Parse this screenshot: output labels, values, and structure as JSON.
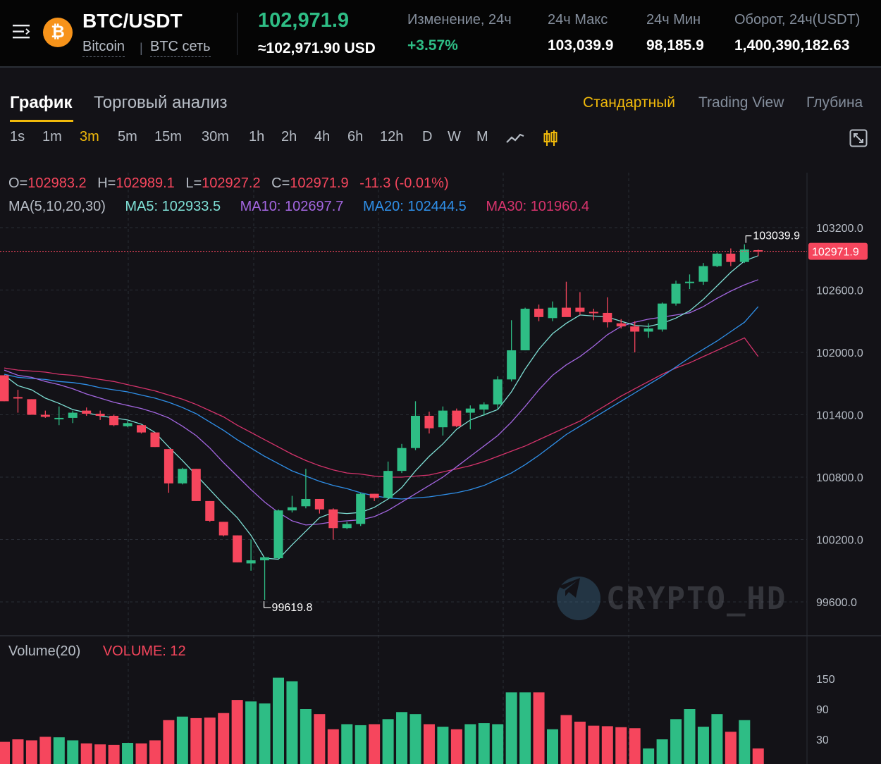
{
  "header": {
    "menu_icon": "menu-icon",
    "coin_icon": "bitcoin-icon",
    "coin_symbol": "₿",
    "pair": "BTC/USDT",
    "coin_name": "Bitcoin",
    "network": "BTC сеть",
    "separator": "|",
    "last_price": "102,971.9",
    "usd_price": "≈102,971.90 USD",
    "stats": [
      {
        "label": "Изменение, 24ч",
        "value": "+3.57%"
      },
      {
        "label": "24ч Макс",
        "value": "103,039.9"
      },
      {
        "label": "24ч Мин",
        "value": "98,185.9"
      },
      {
        "label": "Оборот, 24ч(USDT)",
        "value": "1,400,390,182.63"
      }
    ]
  },
  "tabs": {
    "chart": "График",
    "analysis": "Торговый анализ"
  },
  "views": {
    "standard": "Стандартный",
    "tradingview": "Trading View",
    "depth": "Глубина"
  },
  "intervals": [
    "1s",
    "1m",
    "3m",
    "5m",
    "15m",
    "30m",
    "1h",
    "2h",
    "4h",
    "6h",
    "12h",
    "D",
    "W",
    "M"
  ],
  "active_interval": "3m",
  "toolbar_icons": [
    "line-chart-icon",
    "candlestick-icon",
    "fullscreen-icon"
  ],
  "ohlc": {
    "o_label": "O=",
    "o": "102983.2",
    "h_label": "H=",
    "h": "102989.1",
    "l_label": "L=",
    "l": "102927.2",
    "c_label": "C=",
    "c": "102971.9",
    "change": "-11.3 (-0.01%)"
  },
  "ma_legend": {
    "label": "MA(5,10,20,30)",
    "ma5": "MA5: 102933.5",
    "ma10": "MA10: 102697.7",
    "ma20": "MA20: 102444.5",
    "ma30": "MA30: 101960.4"
  },
  "volume_legend": {
    "label": "Volume(20)",
    "value": "VOLUME: 12"
  },
  "watermark": "CRYPTO_HD",
  "colors": {
    "up": "#2ebd85",
    "down": "#f6465d",
    "accent": "#f0b90b",
    "ma5": "#7fe0d6",
    "ma10": "#a366e0",
    "ma20": "#2f8fe8",
    "ma30": "#d6336c"
  },
  "chart_data": {
    "type": "candlestick",
    "y_range": [
      99300,
      103500
    ],
    "y_ticks": [
      "103200.0",
      "102600.0",
      "102000.0",
      "101400.0",
      "100800.0",
      "100200.0",
      "99600.0"
    ],
    "current_price_label": "102971.9",
    "max_label": "103039.9",
    "min_label": "99619.8",
    "candles": [
      {
        "o": 101780,
        "h": 101780,
        "l": 101530,
        "c": 101530
      },
      {
        "o": 101570,
        "h": 101640,
        "l": 101420,
        "c": 101560
      },
      {
        "o": 101550,
        "h": 101550,
        "l": 101400,
        "c": 101400
      },
      {
        "o": 101400,
        "h": 101440,
        "l": 101370,
        "c": 101380
      },
      {
        "o": 101370,
        "h": 101480,
        "l": 101300,
        "c": 101370
      },
      {
        "o": 101370,
        "h": 101440,
        "l": 101320,
        "c": 101420
      },
      {
        "o": 101440,
        "h": 101470,
        "l": 101390,
        "c": 101410
      },
      {
        "o": 101410,
        "h": 101440,
        "l": 101350,
        "c": 101390
      },
      {
        "o": 101390,
        "h": 101400,
        "l": 101290,
        "c": 101300
      },
      {
        "o": 101290,
        "h": 101340,
        "l": 101280,
        "c": 101320
      },
      {
        "o": 101300,
        "h": 101300,
        "l": 101220,
        "c": 101230
      },
      {
        "o": 101230,
        "h": 101230,
        "l": 101090,
        "c": 101090
      },
      {
        "o": 101070,
        "h": 101070,
        "l": 100650,
        "c": 100740
      },
      {
        "o": 100740,
        "h": 100890,
        "l": 100730,
        "c": 100880
      },
      {
        "o": 100880,
        "h": 100880,
        "l": 100570,
        "c": 100570
      },
      {
        "o": 100570,
        "h": 100570,
        "l": 100370,
        "c": 100380
      },
      {
        "o": 100370,
        "h": 100370,
        "l": 100230,
        "c": 100240
      },
      {
        "o": 100240,
        "h": 100240,
        "l": 99980,
        "c": 99980
      },
      {
        "o": 99970,
        "h": 100200,
        "l": 99900,
        "c": 100000
      },
      {
        "o": 100000,
        "h": 100010,
        "l": 99620,
        "c": 100030
      },
      {
        "o": 100020,
        "h": 100490,
        "l": 100010,
        "c": 100480
      },
      {
        "o": 100480,
        "h": 100620,
        "l": 100460,
        "c": 100510
      },
      {
        "o": 100520,
        "h": 100880,
        "l": 100500,
        "c": 100590
      },
      {
        "o": 100590,
        "h": 100590,
        "l": 100450,
        "c": 100490
      },
      {
        "o": 100490,
        "h": 100500,
        "l": 100200,
        "c": 100310
      },
      {
        "o": 100310,
        "h": 100370,
        "l": 100300,
        "c": 100350
      },
      {
        "o": 100350,
        "h": 100650,
        "l": 100330,
        "c": 100640
      },
      {
        "o": 100640,
        "h": 100640,
        "l": 100570,
        "c": 100600
      },
      {
        "o": 100600,
        "h": 100950,
        "l": 100590,
        "c": 100860
      },
      {
        "o": 100860,
        "h": 101120,
        "l": 100840,
        "c": 101080
      },
      {
        "o": 101080,
        "h": 101530,
        "l": 101060,
        "c": 101390
      },
      {
        "o": 101390,
        "h": 101430,
        "l": 101220,
        "c": 101270
      },
      {
        "o": 101280,
        "h": 101480,
        "l": 101200,
        "c": 101440
      },
      {
        "o": 101440,
        "h": 101460,
        "l": 101280,
        "c": 101290
      },
      {
        "o": 101420,
        "h": 101490,
        "l": 101260,
        "c": 101460
      },
      {
        "o": 101450,
        "h": 101520,
        "l": 101390,
        "c": 101500
      },
      {
        "o": 101500,
        "h": 101770,
        "l": 101450,
        "c": 101740
      },
      {
        "o": 101740,
        "h": 102310,
        "l": 101720,
        "c": 102020
      },
      {
        "o": 102020,
        "h": 102430,
        "l": 102020,
        "c": 102420
      },
      {
        "o": 102420,
        "h": 102460,
        "l": 102300,
        "c": 102340
      },
      {
        "o": 102330,
        "h": 102490,
        "l": 102300,
        "c": 102430
      },
      {
        "o": 102430,
        "h": 102680,
        "l": 102360,
        "c": 102340
      },
      {
        "o": 102430,
        "h": 102580,
        "l": 102360,
        "c": 102390
      },
      {
        "o": 102390,
        "h": 102420,
        "l": 102310,
        "c": 102380
      },
      {
        "o": 102380,
        "h": 102530,
        "l": 102240,
        "c": 102290
      },
      {
        "o": 102280,
        "h": 102320,
        "l": 102230,
        "c": 102250
      },
      {
        "o": 102250,
        "h": 102300,
        "l": 102000,
        "c": 102200
      },
      {
        "o": 102200,
        "h": 102280,
        "l": 102140,
        "c": 102230
      },
      {
        "o": 102220,
        "h": 102480,
        "l": 102200,
        "c": 102470
      },
      {
        "o": 102470,
        "h": 102690,
        "l": 102450,
        "c": 102660
      },
      {
        "o": 102670,
        "h": 102750,
        "l": 102610,
        "c": 102680
      },
      {
        "o": 102680,
        "h": 102860,
        "l": 102650,
        "c": 102830
      },
      {
        "o": 102830,
        "h": 102960,
        "l": 102820,
        "c": 102950
      },
      {
        "o": 102950,
        "h": 103000,
        "l": 102830,
        "c": 102870
      },
      {
        "o": 102870,
        "h": 103040,
        "l": 102860,
        "c": 102990
      },
      {
        "o": 102983,
        "h": 102989,
        "l": 102927,
        "c": 102972
      }
    ],
    "ma5": [
      101780,
      101680,
      101640,
      101560,
      101510,
      101450,
      101420,
      101390,
      101370,
      101350,
      101310,
      101230,
      101090,
      100960,
      100820,
      100680,
      100540,
      100410,
      100240,
      100020,
      100010,
      100150,
      100280,
      100410,
      100460,
      100450,
      100460,
      100510,
      100590,
      100700,
      100860,
      101000,
      101120,
      101260,
      101350,
      101400,
      101450,
      101620,
      101840,
      102030,
      102180,
      102280,
      102360,
      102350,
      102340,
      102300,
      102260,
      102250,
      102280,
      102330,
      102400,
      102510,
      102640,
      102770,
      102880,
      102930
    ],
    "ma10": [
      101830,
      101780,
      101760,
      101720,
      101690,
      101650,
      101600,
      101560,
      101520,
      101490,
      101460,
      101420,
      101370,
      101290,
      101200,
      101080,
      100940,
      100810,
      100680,
      100560,
      100460,
      100380,
      100340,
      100350,
      100370,
      100380,
      100390,
      100420,
      100480,
      100560,
      100640,
      100720,
      100800,
      100900,
      101000,
      101100,
      101200,
      101330,
      101480,
      101640,
      101780,
      101880,
      101960,
      102060,
      102170,
      102250,
      102290,
      102320,
      102340,
      102360,
      102380,
      102440,
      102520,
      102590,
      102650,
      102700
    ],
    "ma20": [
      101790,
      101760,
      101750,
      101740,
      101720,
      101710,
      101690,
      101660,
      101640,
      101620,
      101590,
      101560,
      101520,
      101470,
      101410,
      101330,
      101250,
      101160,
      101080,
      101000,
      100930,
      100860,
      100810,
      100760,
      100720,
      100690,
      100650,
      100620,
      100600,
      100590,
      100600,
      100610,
      100630,
      100650,
      100680,
      100720,
      100780,
      100840,
      100920,
      101010,
      101110,
      101210,
      101290,
      101370,
      101450,
      101530,
      101610,
      101690,
      101770,
      101860,
      101950,
      102030,
      102110,
      102200,
      102290,
      102440
    ],
    "ma30": [
      101850,
      101830,
      101820,
      101810,
      101790,
      101780,
      101760,
      101740,
      101720,
      101690,
      101660,
      101630,
      101590,
      101550,
      101500,
      101440,
      101380,
      101300,
      101230,
      101160,
      101090,
      101020,
      100960,
      100910,
      100870,
      100840,
      100830,
      100810,
      100800,
      100800,
      100810,
      100820,
      100850,
      100880,
      100910,
      100950,
      101000,
      101050,
      101100,
      101160,
      101220,
      101280,
      101340,
      101420,
      101500,
      101580,
      101650,
      101720,
      101790,
      101850,
      101900,
      101960,
      102020,
      102080,
      102140,
      101960
    ],
    "volume": {
      "y_ticks": [
        "150",
        "90",
        "30"
      ],
      "values": [
        25,
        30,
        28,
        35,
        34,
        28,
        22,
        20,
        19,
        23,
        22,
        28,
        68,
        75,
        72,
        73,
        82,
        108,
        105,
        101,
        152,
        145,
        90,
        80,
        50,
        60,
        58,
        60,
        70,
        84,
        80,
        60,
        55,
        50,
        60,
        62,
        60,
        123,
        123,
        123,
        50,
        78,
        65,
        57,
        56,
        54,
        52,
        12,
        30,
        70,
        90,
        55,
        80,
        45,
        68,
        12
      ]
    }
  }
}
